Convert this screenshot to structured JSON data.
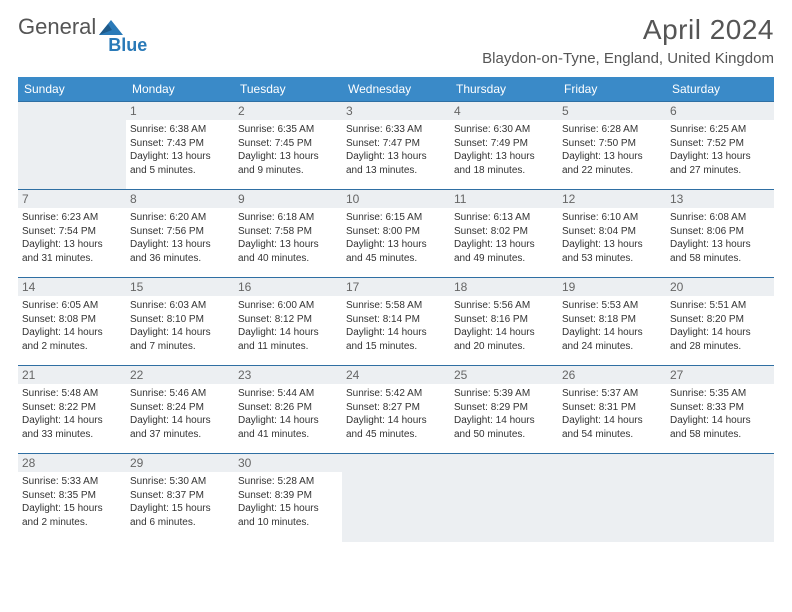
{
  "logo": {
    "text1": "General",
    "text2": "Blue",
    "color_gray": "#666666",
    "color_blue": "#2a7ab8"
  },
  "header": {
    "month_title": "April 2024",
    "location": "Blaydon-on-Tyne, England, United Kingdom"
  },
  "colors": {
    "header_bg": "#3a8ac8",
    "header_fg": "#ffffff",
    "cell_border": "#2f6fa3",
    "daynum_bg": "#eceff2",
    "empty_bg": "#eceff2"
  },
  "dow": [
    "Sunday",
    "Monday",
    "Tuesday",
    "Wednesday",
    "Thursday",
    "Friday",
    "Saturday"
  ],
  "weeks": [
    [
      null,
      {
        "n": "1",
        "sr": "Sunrise: 6:38 AM",
        "ss": "Sunset: 7:43 PM",
        "d1": "Daylight: 13 hours",
        "d2": "and 5 minutes."
      },
      {
        "n": "2",
        "sr": "Sunrise: 6:35 AM",
        "ss": "Sunset: 7:45 PM",
        "d1": "Daylight: 13 hours",
        "d2": "and 9 minutes."
      },
      {
        "n": "3",
        "sr": "Sunrise: 6:33 AM",
        "ss": "Sunset: 7:47 PM",
        "d1": "Daylight: 13 hours",
        "d2": "and 13 minutes."
      },
      {
        "n": "4",
        "sr": "Sunrise: 6:30 AM",
        "ss": "Sunset: 7:49 PM",
        "d1": "Daylight: 13 hours",
        "d2": "and 18 minutes."
      },
      {
        "n": "5",
        "sr": "Sunrise: 6:28 AM",
        "ss": "Sunset: 7:50 PM",
        "d1": "Daylight: 13 hours",
        "d2": "and 22 minutes."
      },
      {
        "n": "6",
        "sr": "Sunrise: 6:25 AM",
        "ss": "Sunset: 7:52 PM",
        "d1": "Daylight: 13 hours",
        "d2": "and 27 minutes."
      }
    ],
    [
      {
        "n": "7",
        "sr": "Sunrise: 6:23 AM",
        "ss": "Sunset: 7:54 PM",
        "d1": "Daylight: 13 hours",
        "d2": "and 31 minutes."
      },
      {
        "n": "8",
        "sr": "Sunrise: 6:20 AM",
        "ss": "Sunset: 7:56 PM",
        "d1": "Daylight: 13 hours",
        "d2": "and 36 minutes."
      },
      {
        "n": "9",
        "sr": "Sunrise: 6:18 AM",
        "ss": "Sunset: 7:58 PM",
        "d1": "Daylight: 13 hours",
        "d2": "and 40 minutes."
      },
      {
        "n": "10",
        "sr": "Sunrise: 6:15 AM",
        "ss": "Sunset: 8:00 PM",
        "d1": "Daylight: 13 hours",
        "d2": "and 45 minutes."
      },
      {
        "n": "11",
        "sr": "Sunrise: 6:13 AM",
        "ss": "Sunset: 8:02 PM",
        "d1": "Daylight: 13 hours",
        "d2": "and 49 minutes."
      },
      {
        "n": "12",
        "sr": "Sunrise: 6:10 AM",
        "ss": "Sunset: 8:04 PM",
        "d1": "Daylight: 13 hours",
        "d2": "and 53 minutes."
      },
      {
        "n": "13",
        "sr": "Sunrise: 6:08 AM",
        "ss": "Sunset: 8:06 PM",
        "d1": "Daylight: 13 hours",
        "d2": "and 58 minutes."
      }
    ],
    [
      {
        "n": "14",
        "sr": "Sunrise: 6:05 AM",
        "ss": "Sunset: 8:08 PM",
        "d1": "Daylight: 14 hours",
        "d2": "and 2 minutes."
      },
      {
        "n": "15",
        "sr": "Sunrise: 6:03 AM",
        "ss": "Sunset: 8:10 PM",
        "d1": "Daylight: 14 hours",
        "d2": "and 7 minutes."
      },
      {
        "n": "16",
        "sr": "Sunrise: 6:00 AM",
        "ss": "Sunset: 8:12 PM",
        "d1": "Daylight: 14 hours",
        "d2": "and 11 minutes."
      },
      {
        "n": "17",
        "sr": "Sunrise: 5:58 AM",
        "ss": "Sunset: 8:14 PM",
        "d1": "Daylight: 14 hours",
        "d2": "and 15 minutes."
      },
      {
        "n": "18",
        "sr": "Sunrise: 5:56 AM",
        "ss": "Sunset: 8:16 PM",
        "d1": "Daylight: 14 hours",
        "d2": "and 20 minutes."
      },
      {
        "n": "19",
        "sr": "Sunrise: 5:53 AM",
        "ss": "Sunset: 8:18 PM",
        "d1": "Daylight: 14 hours",
        "d2": "and 24 minutes."
      },
      {
        "n": "20",
        "sr": "Sunrise: 5:51 AM",
        "ss": "Sunset: 8:20 PM",
        "d1": "Daylight: 14 hours",
        "d2": "and 28 minutes."
      }
    ],
    [
      {
        "n": "21",
        "sr": "Sunrise: 5:48 AM",
        "ss": "Sunset: 8:22 PM",
        "d1": "Daylight: 14 hours",
        "d2": "and 33 minutes."
      },
      {
        "n": "22",
        "sr": "Sunrise: 5:46 AM",
        "ss": "Sunset: 8:24 PM",
        "d1": "Daylight: 14 hours",
        "d2": "and 37 minutes."
      },
      {
        "n": "23",
        "sr": "Sunrise: 5:44 AM",
        "ss": "Sunset: 8:26 PM",
        "d1": "Daylight: 14 hours",
        "d2": "and 41 minutes."
      },
      {
        "n": "24",
        "sr": "Sunrise: 5:42 AM",
        "ss": "Sunset: 8:27 PM",
        "d1": "Daylight: 14 hours",
        "d2": "and 45 minutes."
      },
      {
        "n": "25",
        "sr": "Sunrise: 5:39 AM",
        "ss": "Sunset: 8:29 PM",
        "d1": "Daylight: 14 hours",
        "d2": "and 50 minutes."
      },
      {
        "n": "26",
        "sr": "Sunrise: 5:37 AM",
        "ss": "Sunset: 8:31 PM",
        "d1": "Daylight: 14 hours",
        "d2": "and 54 minutes."
      },
      {
        "n": "27",
        "sr": "Sunrise: 5:35 AM",
        "ss": "Sunset: 8:33 PM",
        "d1": "Daylight: 14 hours",
        "d2": "and 58 minutes."
      }
    ],
    [
      {
        "n": "28",
        "sr": "Sunrise: 5:33 AM",
        "ss": "Sunset: 8:35 PM",
        "d1": "Daylight: 15 hours",
        "d2": "and 2 minutes."
      },
      {
        "n": "29",
        "sr": "Sunrise: 5:30 AM",
        "ss": "Sunset: 8:37 PM",
        "d1": "Daylight: 15 hours",
        "d2": "and 6 minutes."
      },
      {
        "n": "30",
        "sr": "Sunrise: 5:28 AM",
        "ss": "Sunset: 8:39 PM",
        "d1": "Daylight: 15 hours",
        "d2": "and 10 minutes."
      },
      null,
      null,
      null,
      null
    ]
  ]
}
